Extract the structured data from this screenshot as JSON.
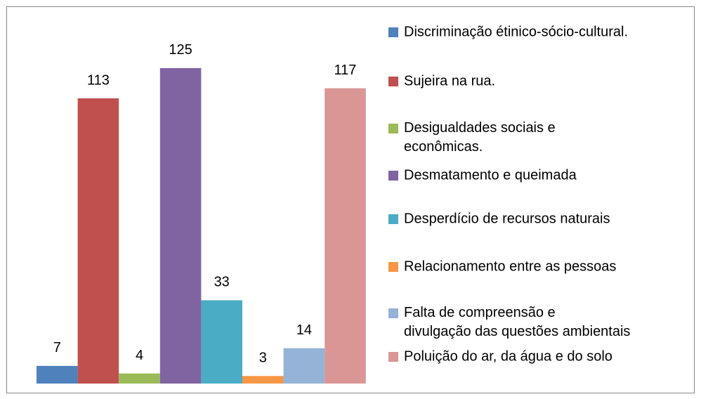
{
  "chart_data": {
    "type": "bar",
    "ylim": [
      0,
      140
    ],
    "series": [
      {
        "name": "Discriminação étinico-sócio-cultural.",
        "color": "#4f81bd",
        "values": [
          7
        ]
      },
      {
        "name": "Sujeira na rua.",
        "color": "#c0504d",
        "values": [
          113
        ]
      },
      {
        "name": "Desigualdades sociais e econômicas.",
        "color": "#9bbb59",
        "values": [
          4
        ]
      },
      {
        "name": "Desmatamento e queimada",
        "color": "#8064a2",
        "values": [
          125
        ]
      },
      {
        "name": "Desperdício de recursos naturais",
        "color": "#4bacc6",
        "values": [
          33
        ]
      },
      {
        "name": "Relacionamento entre as pessoas",
        "color": "#f79646",
        "values": [
          3
        ]
      },
      {
        "name": "Falta de compreensão e divulgação das questões ambientais",
        "color": "#95b3d7",
        "values": [
          14
        ]
      },
      {
        "name": "Poluição do ar, da água e do solo",
        "color": "#d99694",
        "values": [
          117
        ]
      }
    ]
  }
}
